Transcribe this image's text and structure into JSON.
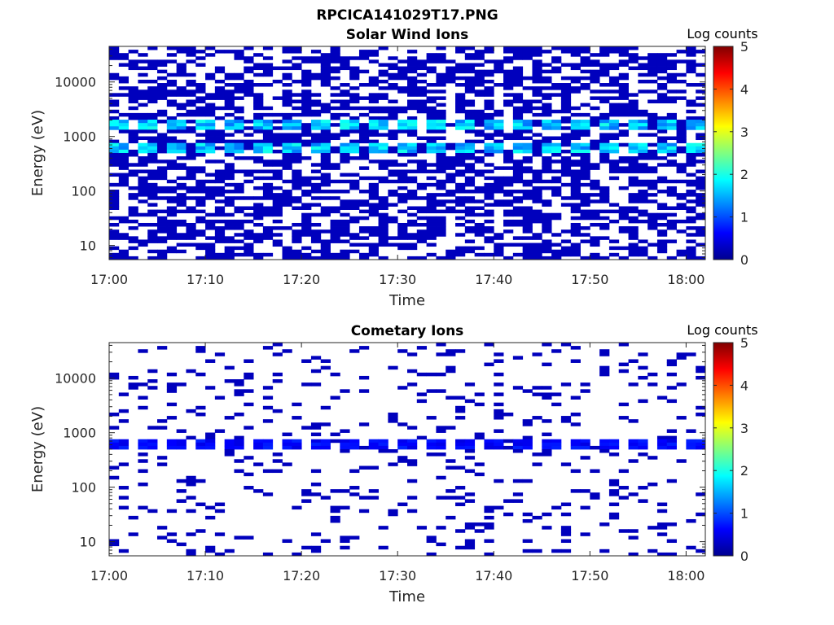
{
  "figure": {
    "title": "RPCICA141029T17.PNG"
  },
  "chart_data": [
    {
      "type": "heatmap",
      "title": "Solar Wind Ions",
      "xlabel": "Time",
      "ylabel": "Energy (eV)",
      "x_ticks": [
        "17:00",
        "17:10",
        "17:20",
        "17:30",
        "17:40",
        "17:50",
        "18:00"
      ],
      "x_range": [
        "17:00",
        "18:02"
      ],
      "y_scale": "log",
      "y_ticks": [
        "10",
        "100",
        "1000",
        "10000"
      ],
      "y_range": [
        5.5,
        45000
      ],
      "colorbar": {
        "label": "Log counts",
        "ticks": [
          "0",
          "1",
          "2",
          "3",
          "4",
          "5"
        ],
        "range": [
          0,
          5
        ],
        "colormap": "jet"
      },
      "time_bins": 62,
      "energy_bins": 64,
      "peak_energy_bands_eV": [
        700,
        1650
      ],
      "peak_log_counts": 2.0,
      "background_log_counts": 0.3
    },
    {
      "type": "heatmap",
      "title": "Cometary Ions",
      "xlabel": "Time",
      "ylabel": "Energy (eV)",
      "x_ticks": [
        "17:00",
        "17:10",
        "17:20",
        "17:30",
        "17:40",
        "17:50",
        "18:00"
      ],
      "x_range": [
        "17:00",
        "18:02"
      ],
      "y_scale": "log",
      "y_ticks": [
        "10",
        "100",
        "1000",
        "10000"
      ],
      "y_range": [
        5.5,
        45000
      ],
      "colorbar": {
        "label": "Log counts",
        "ticks": [
          "0",
          "1",
          "2",
          "3",
          "4",
          "5"
        ],
        "range": [
          0,
          5
        ],
        "colormap": "jet"
      },
      "time_bins": 62,
      "energy_bins": 64,
      "peak_energy_bands_eV": [
        700
      ],
      "peak_log_counts": 0.8,
      "background_log_counts": 0.3
    }
  ]
}
